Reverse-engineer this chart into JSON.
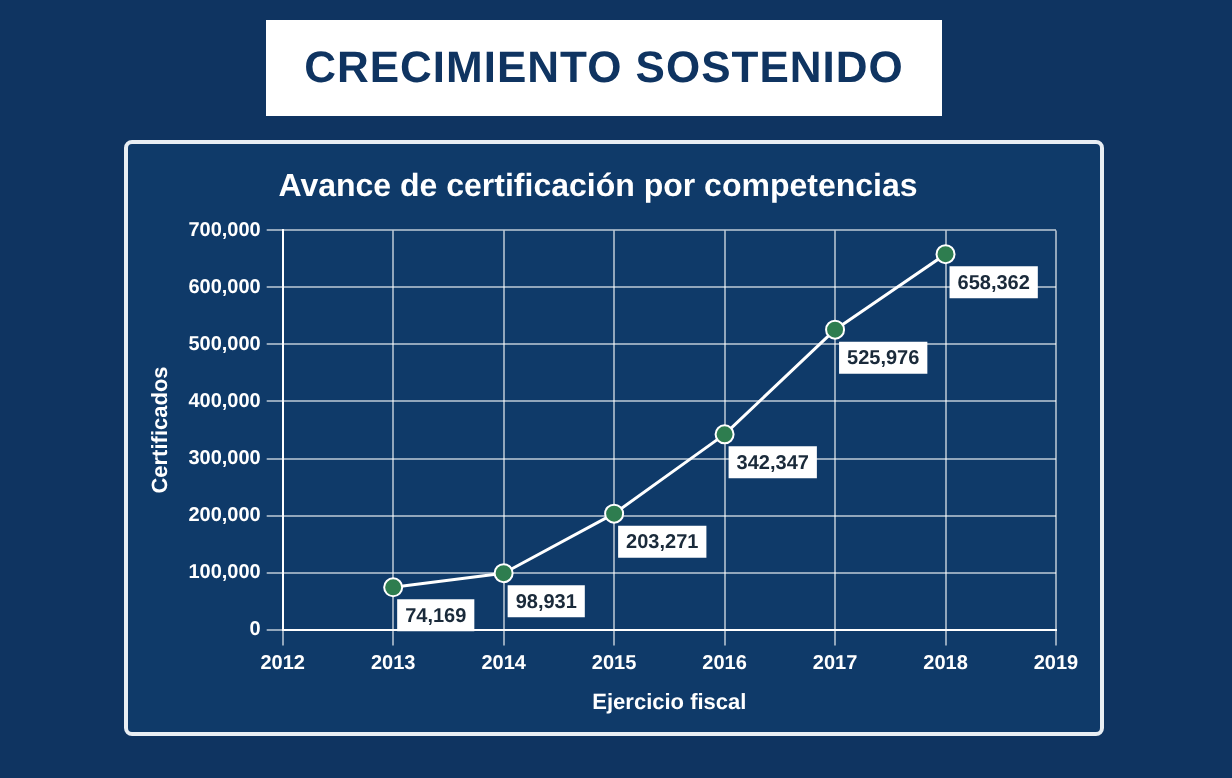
{
  "chart_data": {
    "type": "line",
    "title": "CRECIMIENTO SOSTENIDO",
    "subtitle": "Avance de certificación por competencias",
    "xlabel": "Ejercicio fiscal",
    "ylabel": "Certificados",
    "x": [
      2013,
      2014,
      2015,
      2016,
      2017,
      2018
    ],
    "series": [
      {
        "color": "#ffffff",
        "values": [
          74169,
          98931,
          203271,
          342347,
          525976,
          658362
        ],
        "value_labels": [
          "74,169",
          "98,931",
          "203,271",
          "342,347",
          "525,976",
          "658,362"
        ]
      }
    ],
    "xlim": [
      2012,
      2019
    ],
    "xticks": [
      2012,
      2013,
      2014,
      2015,
      2016,
      2017,
      2018,
      2019
    ],
    "ylim": [
      0,
      700000
    ],
    "yticks": [
      0,
      {
        "value": 100000,
        "label": "100,000"
      },
      {
        "value": 200000,
        "label": "200,000"
      },
      {
        "value": 300000,
        "label": "300,000"
      },
      {
        "value": 400000,
        "label": "400,000"
      },
      {
        "value": 500000,
        "label": "500,000"
      },
      {
        "value": 600000,
        "label": "600,000"
      },
      {
        "value": 700000,
        "label": "700,000"
      }
    ],
    "grid": true,
    "legend": false,
    "marker": "circle"
  }
}
